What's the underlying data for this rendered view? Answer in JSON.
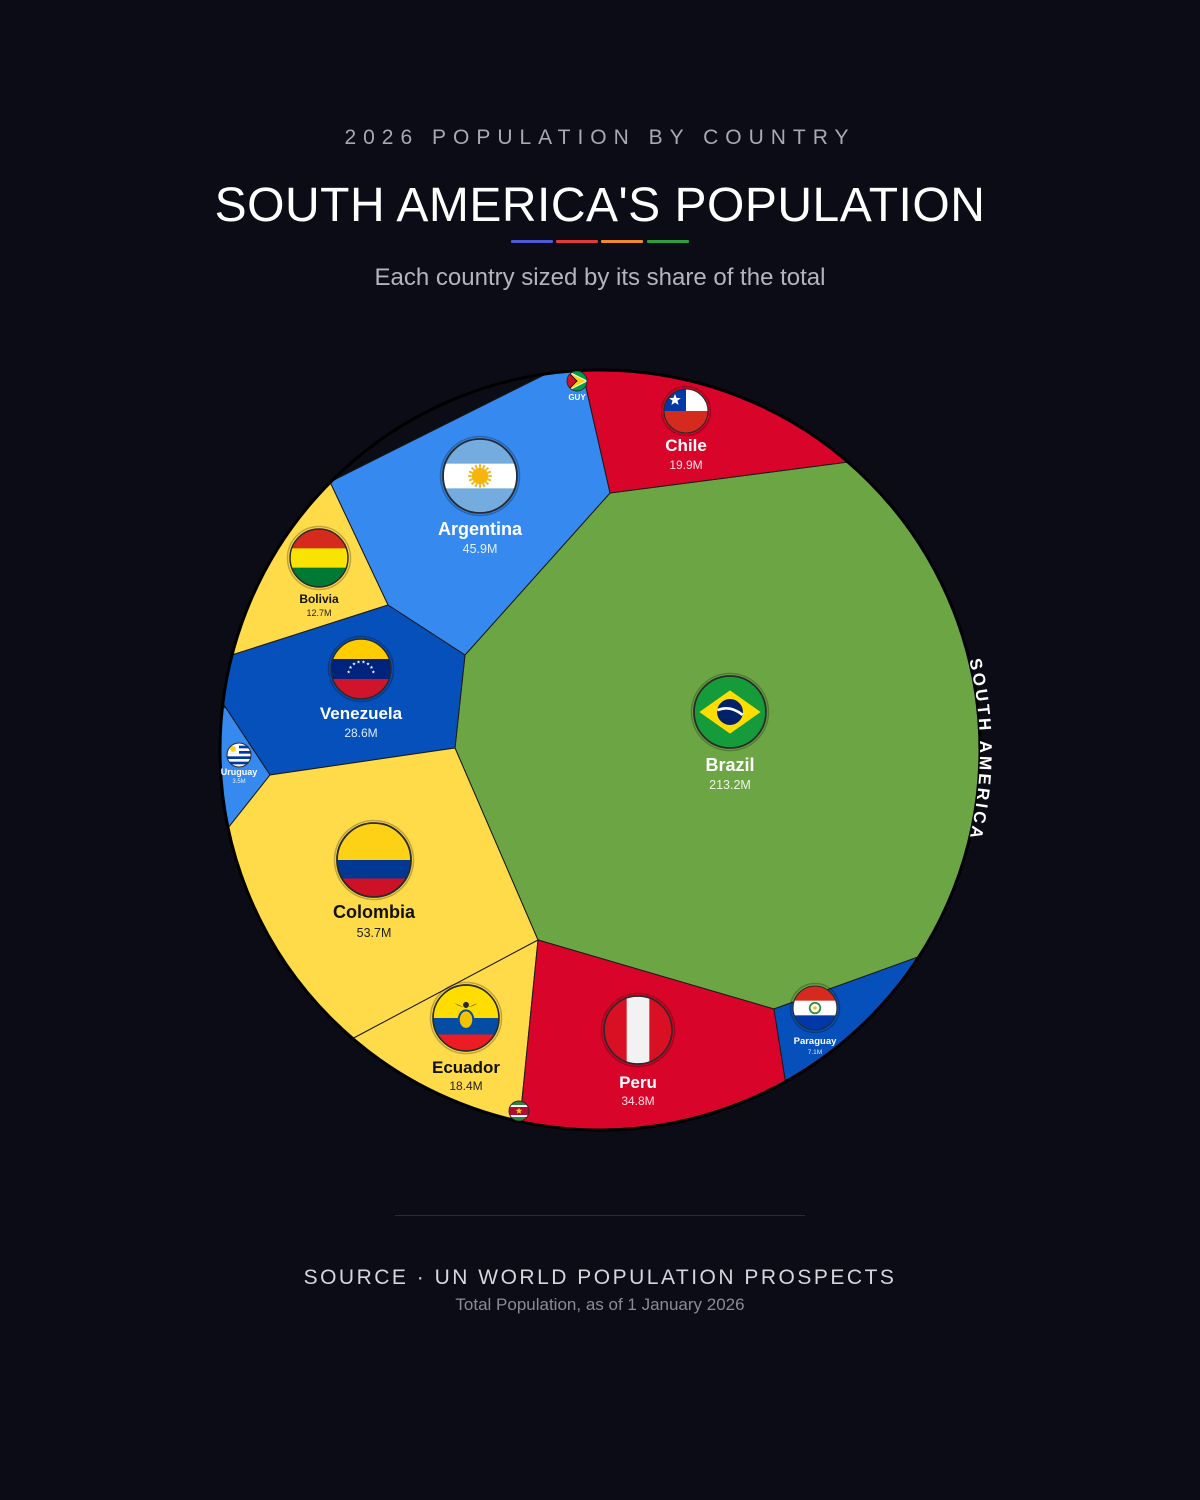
{
  "header": {
    "kicker": "2026 POPULATION BY COUNTRY",
    "title": "SOUTH AMERICA'S POPULATION",
    "subtitle": "Each country sized by its share of the total",
    "rule_colors": [
      "#4f5bd5",
      "#e03b3b",
      "#f08a24",
      "#2e9e3e"
    ]
  },
  "chart_data": {
    "type": "voronoi-treemap",
    "region_label": "SOUTH AMERICA",
    "unit": "M",
    "cells": [
      {
        "name": "Brazil",
        "value": 213.2,
        "display_value": "213.2M",
        "color": "#6ca544",
        "flag": "brazil-flag"
      },
      {
        "name": "Colombia",
        "value": 53.7,
        "display_value": "53.7M",
        "color": "#ffdb4a",
        "flag": "colombia-flag"
      },
      {
        "name": "Argentina",
        "value": 45.9,
        "display_value": "45.9M",
        "color": "#3589ef",
        "flag": "argentina-flag"
      },
      {
        "name": "Peru",
        "value": 34.8,
        "display_value": "34.8M",
        "color": "#d90429",
        "flag": "peru-flag"
      },
      {
        "name": "Venezuela",
        "value": 28.6,
        "display_value": "28.6M",
        "color": "#0550ba",
        "flag": "venezuela-flag"
      },
      {
        "name": "Chile",
        "value": 19.9,
        "display_value": "19.9M",
        "color": "#d90429",
        "flag": "chile-flag"
      },
      {
        "name": "Ecuador",
        "value": 18.4,
        "display_value": "18.4M",
        "color": "#ffdb4a",
        "flag": "ecuador-flag"
      },
      {
        "name": "Bolivia",
        "value": 12.7,
        "display_value": "12.7M",
        "color": "#ffdb4a",
        "flag": "bolivia-flag"
      },
      {
        "name": "Paraguay",
        "value": 7.1,
        "display_value": "7.1M",
        "color": "#0550ba",
        "flag": "paraguay-flag"
      },
      {
        "name": "Uruguay",
        "value": 3.5,
        "display_value": "3.5M",
        "color": "#3589ef",
        "flag": "uruguay-flag"
      },
      {
        "name": "GUY",
        "value": null,
        "display_value": "",
        "color": "#6ca544",
        "flag": "guyana-flag"
      },
      {
        "name": "",
        "value": null,
        "display_value": "",
        "color": "#d90429",
        "flag": "suriname-flag"
      }
    ]
  },
  "footer": {
    "source": "SOURCE · UN WORLD POPULATION PROSPECTS",
    "note": "Total Population, as of 1 January 2026"
  }
}
